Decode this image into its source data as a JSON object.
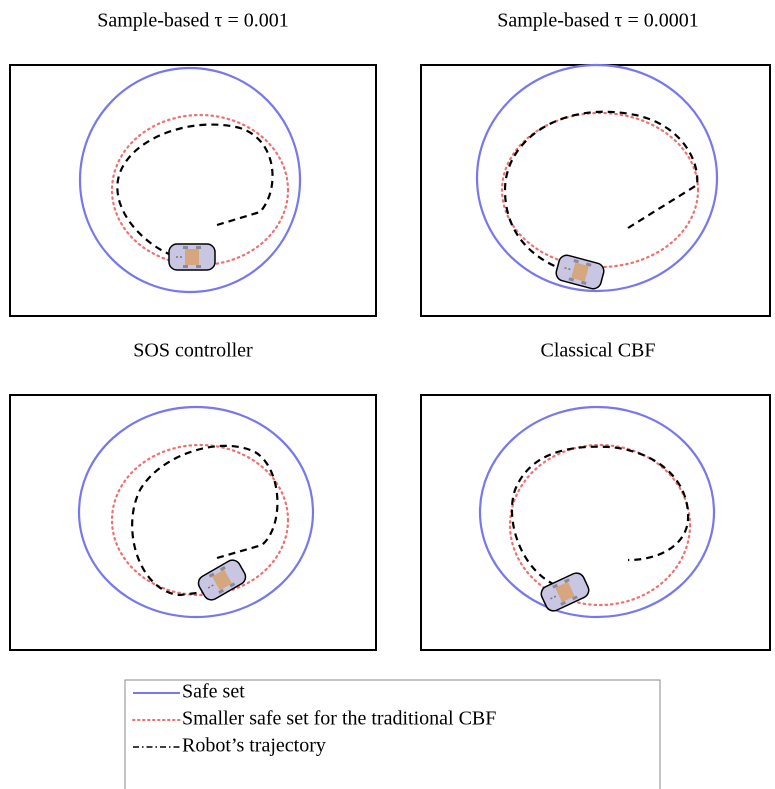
{
  "panels": [
    {
      "title": "Sample-based τ = 0.001"
    },
    {
      "title": "Sample-based τ = 0.0001"
    },
    {
      "title": "SOS controller"
    },
    {
      "title": "Classical CBF"
    }
  ],
  "legend": {
    "entries": [
      "Safe set",
      "Smaller safe set for the traditional CBF",
      "Robot’s trajectory"
    ]
  }
}
